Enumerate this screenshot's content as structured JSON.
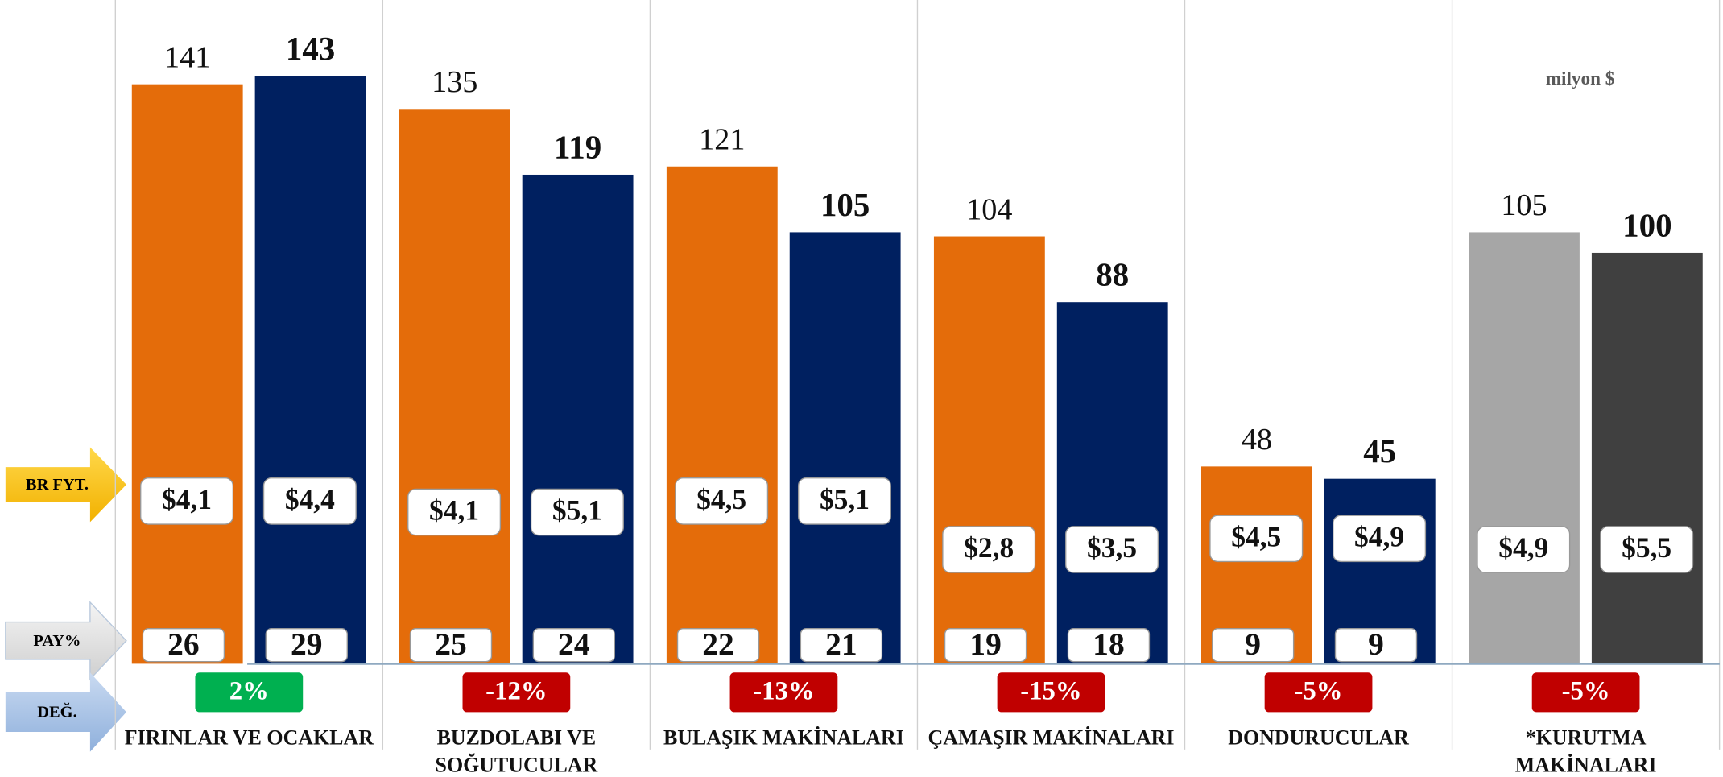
{
  "chart_data": {
    "type": "bar",
    "annotation": "milyon $",
    "categories": [
      [
        "FIRINLAR VE OCAKLAR"
      ],
      [
        "BUZDOLABI VE",
        "SOĞUTUCULAR"
      ],
      [
        "BULAŞIK MAKİNALARI"
      ],
      [
        "ÇAMAŞIR MAKİNALARI"
      ],
      [
        "DONDURUCULAR"
      ],
      [
        "*KURUTMA",
        "MAKİNALARI"
      ]
    ],
    "ylim": [
      0,
      150
    ],
    "series": [
      {
        "values": [
          141,
          135,
          121,
          104,
          48,
          105
        ],
        "colors": [
          "#e46c0a",
          "#e46c0a",
          "#e46c0a",
          "#e46c0a",
          "#e46c0a",
          "#a6a6a6"
        ]
      },
      {
        "values": [
          143,
          119,
          105,
          88,
          45,
          100
        ],
        "colors": [
          "#002060",
          "#002060",
          "#002060",
          "#002060",
          "#002060",
          "#404040"
        ]
      }
    ],
    "unit_price": {
      "name": "BR FYT.",
      "series": [
        {
          "values": [
            4.1,
            4.1,
            4.5,
            2.8,
            4.5,
            4.9
          ],
          "value_labels": [
            "$4,1",
            "$4,1",
            "$4,5",
            "$2,8",
            "$4,5",
            "$4,9"
          ]
        },
        {
          "values": [
            4.4,
            5.1,
            5.1,
            3.5,
            4.9,
            5.5
          ],
          "value_labels": [
            "$4,4",
            "$5,1",
            "$5,1",
            "$3,5",
            "$4,9",
            "$5,5"
          ]
        }
      ]
    },
    "share": {
      "name": "PAY%",
      "series": [
        {
          "values": [
            26,
            25,
            22,
            19,
            9,
            null
          ]
        },
        {
          "values": [
            29,
            24,
            21,
            18,
            9,
            null
          ]
        }
      ]
    },
    "change": {
      "name": "DEĞ.",
      "values": [
        2,
        -12,
        -13,
        -15,
        -5,
        -5
      ],
      "value_labels": [
        "2%",
        "-12%",
        "-13%",
        "-15%",
        "-5%",
        "-5%"
      ]
    }
  }
}
